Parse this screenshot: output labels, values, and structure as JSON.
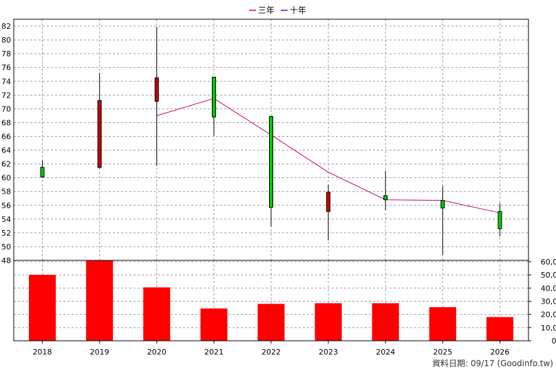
{
  "chart_data": {
    "type": "candlestick-bar",
    "legend": {
      "placement": "top-center",
      "entries": [
        {
          "name": "三年",
          "color": "#cc0066"
        },
        {
          "name": "十年",
          "color": "#6600cc"
        }
      ]
    },
    "categories": [
      "2018",
      "2019",
      "2020",
      "2021",
      "2022",
      "2023",
      "2024",
      "2025",
      "2026"
    ],
    "price_axis": {
      "range": [
        48,
        83
      ],
      "ticks": [
        "48",
        "50",
        "52",
        "54",
        "56",
        "58",
        "60",
        "62",
        "64",
        "66",
        "68",
        "70",
        "72",
        "74",
        "76",
        "78",
        "80",
        "82"
      ]
    },
    "volume_axis": {
      "range": [
        0,
        61000
      ],
      "ticks": [
        "0",
        "10,000",
        "20,000",
        "30,000",
        "40,000",
        "50,000",
        "60,000"
      ]
    },
    "candles": [
      {
        "open": 61.5,
        "close": 60.1,
        "high": 62.5,
        "low": 60.0
      },
      {
        "open": 61.5,
        "close": 71.2,
        "high": 75.2,
        "low": 61.3
      },
      {
        "open": 71.1,
        "close": 74.5,
        "high": 81.9,
        "low": 61.7
      },
      {
        "open": 74.6,
        "close": 68.8,
        "high": 74.6,
        "low": 66.1
      },
      {
        "open": 68.9,
        "close": 55.7,
        "high": 68.9,
        "low": 52.9
      },
      {
        "open": 55.1,
        "close": 57.9,
        "high": 59.0,
        "low": 50.9
      },
      {
        "open": 57.4,
        "close": 56.8,
        "high": 61.0,
        "low": 55.3
      },
      {
        "open": 56.7,
        "close": 55.6,
        "high": 58.8,
        "low": 48.8
      },
      {
        "open": 55.1,
        "close": 52.6,
        "high": 56.3,
        "low": 51.5
      }
    ],
    "colors": {
      "up": "#cc0000",
      "down": "#00cc00",
      "volume": "#ff0000",
      "grid": "#999999"
    },
    "three_year_line": [
      null,
      null,
      69.0,
      71.5,
      66.2,
      60.8,
      56.8,
      56.7,
      54.9
    ],
    "volume": [
      50000,
      61000,
      40500,
      24500,
      28000,
      28500,
      28500,
      25500,
      18000
    ],
    "grid": true
  },
  "footer": {
    "source_text": "資料日期: 09/17  (Goodinfo.tw)"
  }
}
